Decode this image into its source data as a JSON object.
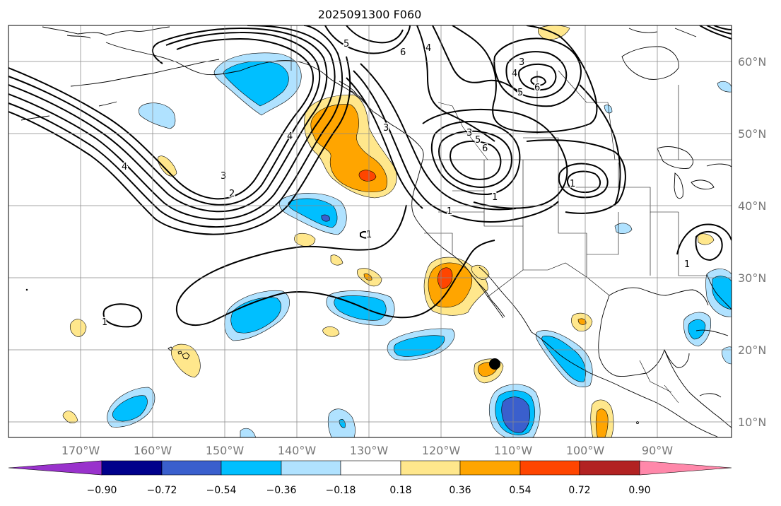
{
  "title": "2025091300 F060",
  "lon_labels": [
    "170°W",
    "160°W",
    "150°W",
    "140°W",
    "130°W",
    "120°W",
    "110°W",
    "100°W",
    "90°W"
  ],
  "lat_labels": [
    "60°N",
    "50°N",
    "40°N",
    "30°N",
    "20°N",
    "10°N"
  ],
  "colorbar": {
    "ticks": [
      "−0.90",
      "−0.72",
      "−0.54",
      "−0.36",
      "−0.18",
      "0.18",
      "0.36",
      "0.54",
      "0.72",
      "0.90"
    ],
    "colors": [
      "#9932CC",
      "#00008B",
      "#3A5FCD",
      "#00BFFF",
      "#B0E2FF",
      "#FFFFFF",
      "#FFE78C",
      "#FFA500",
      "#FF4500",
      "#B22222",
      "#FF88AA"
    ]
  },
  "contour_labels": [
    "5",
    "6",
    "4",
    "3",
    "5",
    "6",
    "4",
    "3",
    "5",
    "6",
    "4",
    "3",
    "2",
    "4",
    "1",
    "1",
    "1",
    "1",
    "1",
    "1",
    "3"
  ],
  "palette": {
    "blue_light": "#B0E2FF",
    "blue": "#00BFFF",
    "blue_dark": "#3A5FCD",
    "yellow": "#FFE78C",
    "orange": "#FFA500",
    "red": "#FF4500"
  }
}
